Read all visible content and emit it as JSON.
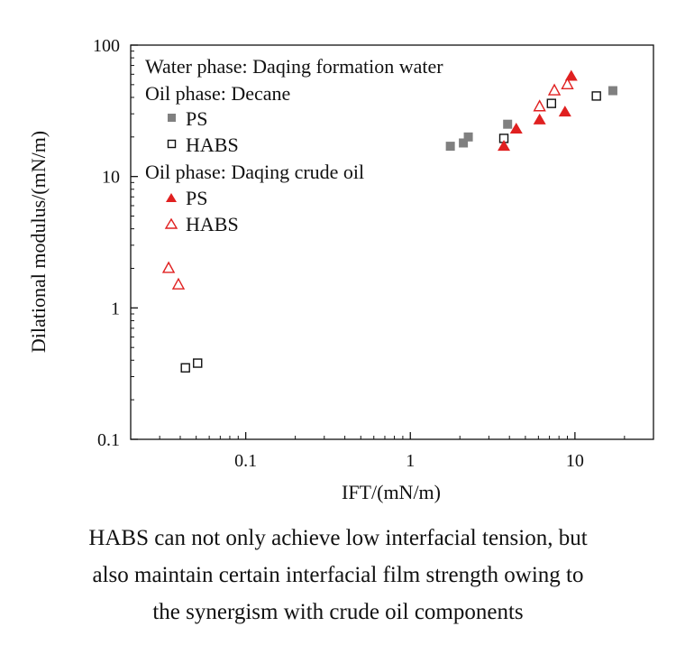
{
  "chart_data": {
    "type": "scatter",
    "xlabel": "IFT/(mN/m)",
    "ylabel": "Dilational modulus/(mN/m)",
    "x_scale": "log",
    "y_scale": "log",
    "xlim": [
      0.02,
      30
    ],
    "ylim": [
      0.1,
      100
    ],
    "x_ticks": [
      0.1,
      1,
      10
    ],
    "x_tick_labels": [
      "0.1",
      "1",
      "10"
    ],
    "y_ticks": [
      0.1,
      1,
      10,
      100
    ],
    "y_tick_labels": [
      "0.1",
      "1",
      "10",
      "100"
    ],
    "grid": false,
    "legend_position": "top-left",
    "legend_headers": [
      "Water phase: Daqing formation water",
      "Oil phase: Decane",
      "Oil phase: Daqing crude oil"
    ],
    "series": [
      {
        "name": "PS",
        "group": "Oil phase: Decane",
        "marker": "filled-square",
        "color": "#808080",
        "x": [
          1.75,
          2.1,
          2.25,
          3.9,
          17
        ],
        "y": [
          17,
          18,
          20,
          25,
          45
        ]
      },
      {
        "name": "HABS",
        "group": "Oil phase: Decane",
        "marker": "open-square",
        "color": "#111111",
        "x": [
          0.043,
          0.051,
          3.7,
          7.2,
          13.5
        ],
        "y": [
          0.35,
          0.38,
          19.5,
          36,
          41
        ]
      },
      {
        "name": "PS",
        "group": "Oil phase: Daqing crude oil",
        "marker": "filled-triangle",
        "color": "#e02020",
        "x": [
          3.7,
          4.4,
          6.1,
          8.7,
          9.5
        ],
        "y": [
          17,
          23,
          27,
          31,
          58
        ]
      },
      {
        "name": "HABS",
        "group": "Oil phase: Daqing crude oil",
        "marker": "open-triangle",
        "color": "#e02020",
        "x": [
          0.034,
          0.039,
          6.1,
          7.5,
          9.0
        ],
        "y": [
          2.0,
          1.5,
          34,
          45,
          50
        ]
      }
    ]
  },
  "caption": {
    "line1": "HABS can not only achieve low interfacial tension, but",
    "line2": "also maintain certain interfacial film strength owing to",
    "line3": "the synergism with crude oil components"
  }
}
